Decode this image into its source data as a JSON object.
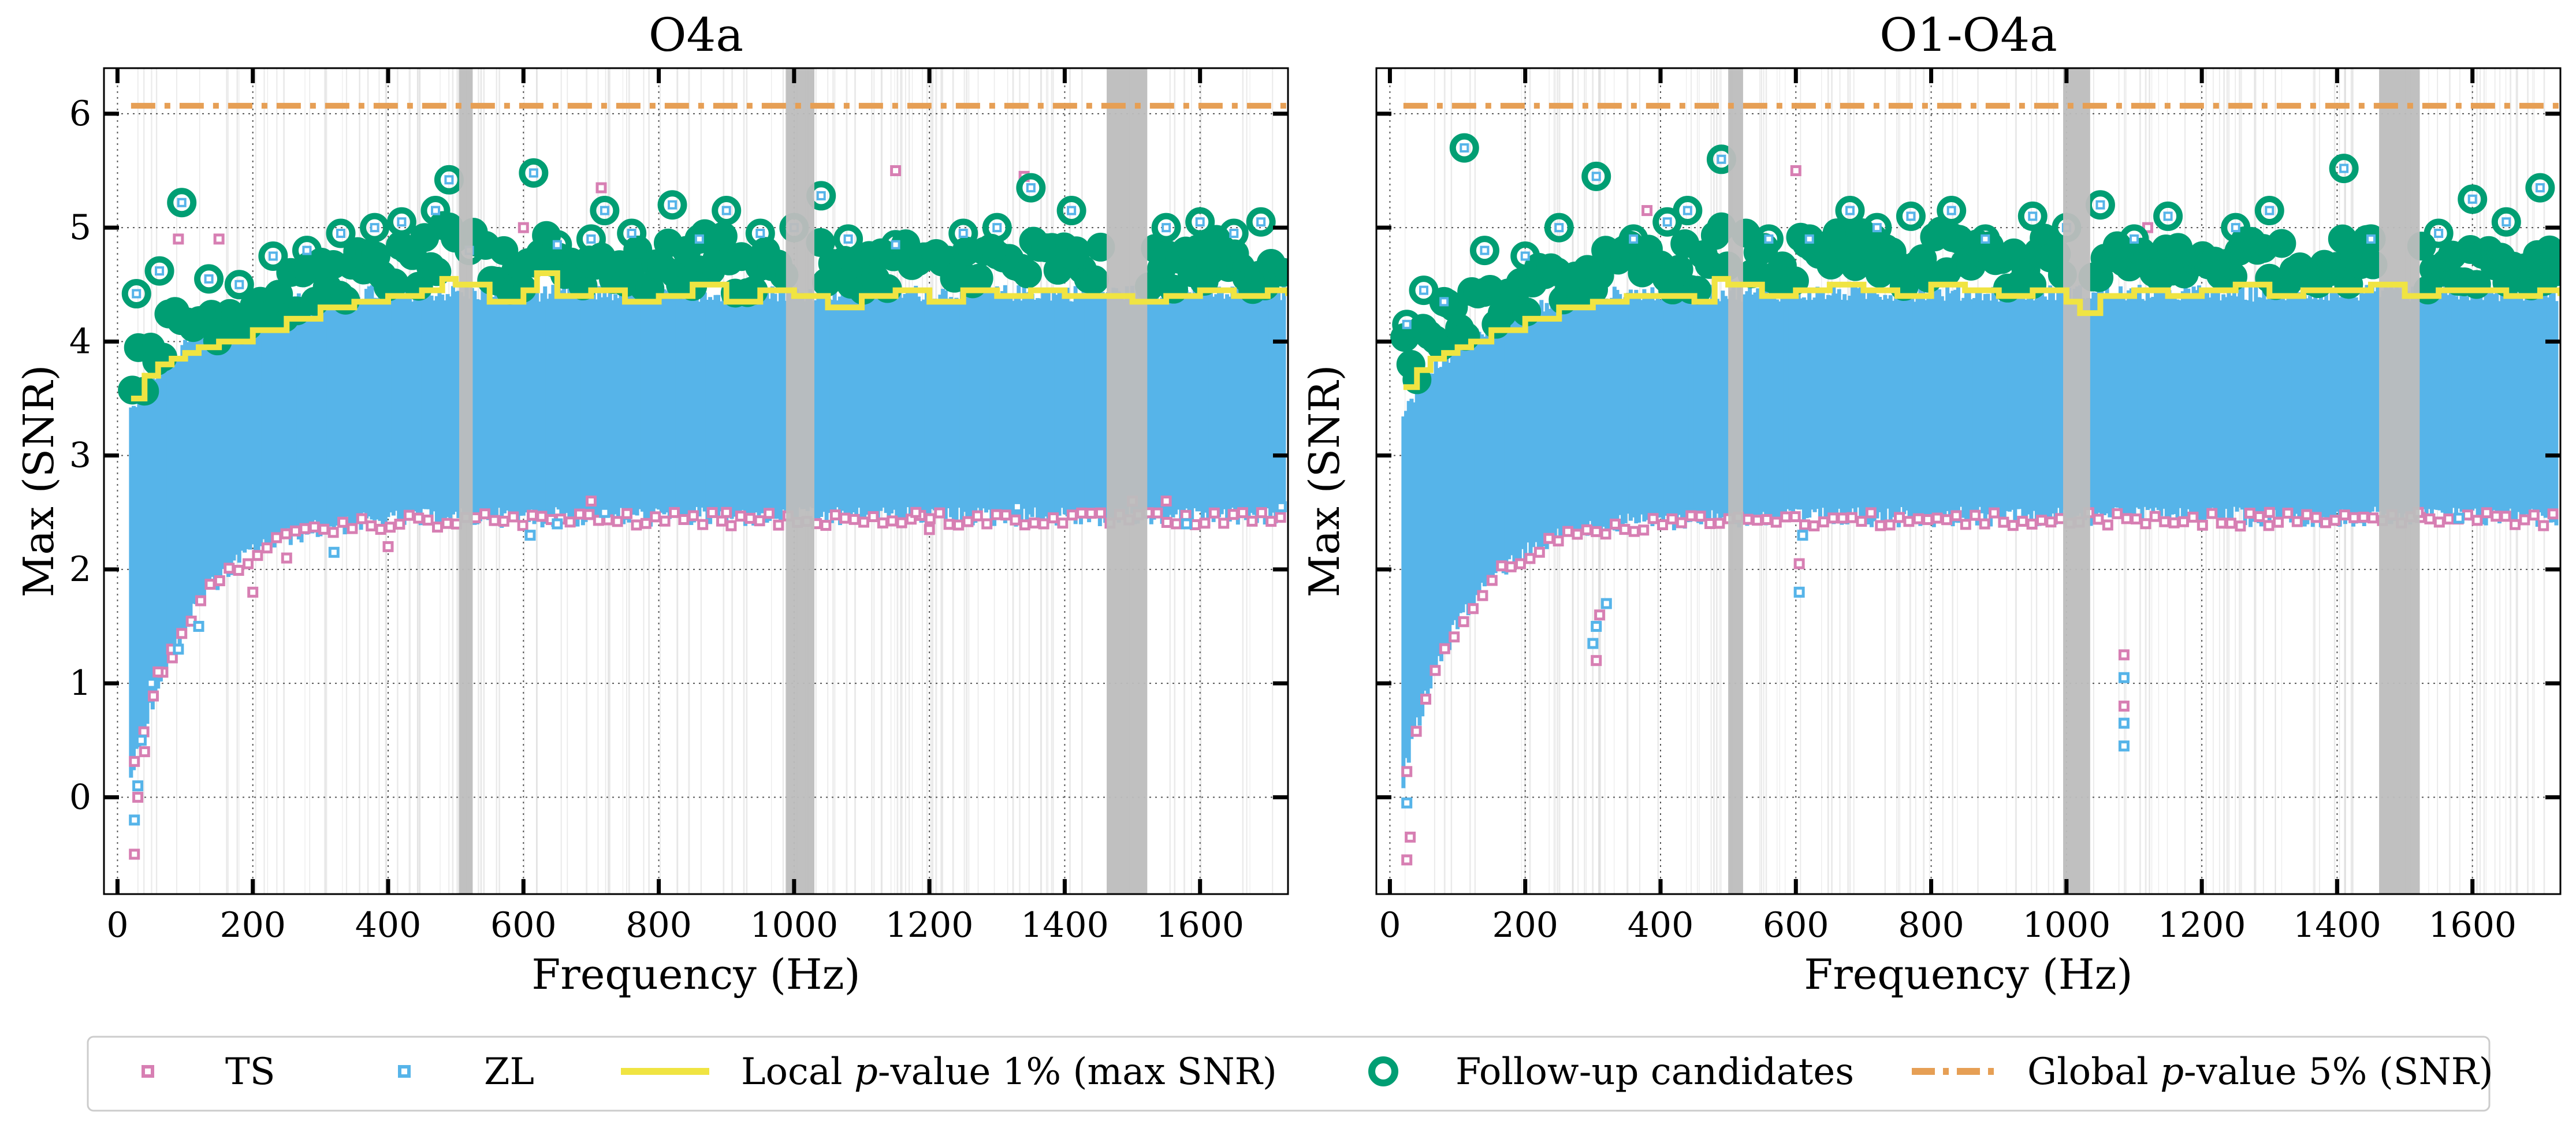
{
  "chart_data": [
    {
      "type": "scatter",
      "title": "O4a",
      "xlabel": "Frequency (Hz)",
      "ylabel": "Max (SNR)",
      "xlim": [
        -20,
        1730
      ],
      "ylim": [
        -0.85,
        6.4
      ],
      "xticks": [
        "0",
        "200",
        "400",
        "600",
        "800",
        "1000",
        "1200",
        "1400",
        "1600"
      ],
      "yticks": [
        "0",
        "1",
        "2",
        "3",
        "4",
        "5",
        "6"
      ],
      "grid": true,
      "vetoed_bands_hz": [
        [
          505,
          525
        ],
        [
          988,
          1030
        ],
        [
          1462,
          1522
        ]
      ],
      "global_pvalue_5pct_snr": 6.07,
      "local_pvalue_1pct_curve": {
        "x": [
          20,
          40,
          60,
          80,
          100,
          120,
          150,
          200,
          250,
          300,
          350,
          400,
          450,
          480,
          500,
          550,
          600,
          620,
          650,
          700,
          750,
          800,
          850,
          900,
          950,
          1000,
          1050,
          1100,
          1150,
          1200,
          1250,
          1300,
          1350,
          1400,
          1450,
          1500,
          1550,
          1600,
          1650,
          1700,
          1730
        ],
        "y": [
          3.5,
          3.7,
          3.8,
          3.85,
          3.9,
          3.95,
          4.0,
          4.1,
          4.2,
          4.3,
          4.35,
          4.4,
          4.45,
          4.55,
          4.5,
          4.35,
          4.45,
          4.6,
          4.4,
          4.45,
          4.35,
          4.4,
          4.5,
          4.35,
          4.45,
          4.4,
          4.3,
          4.4,
          4.45,
          4.35,
          4.45,
          4.4,
          4.45,
          4.4,
          4.4,
          4.35,
          4.4,
          4.45,
          4.4,
          4.45,
          4.4
        ]
      },
      "followup_candidates": {
        "x": [
          28,
          62,
          95,
          135,
          180,
          230,
          280,
          330,
          380,
          420,
          470,
          490,
          520,
          615,
          650,
          700,
          720,
          760,
          820,
          860,
          900,
          950,
          1000,
          1040,
          1080,
          1150,
          1250,
          1300,
          1350,
          1410,
          1550,
          1600,
          1650,
          1690
        ],
        "y": [
          4.42,
          4.62,
          5.22,
          4.55,
          4.5,
          4.75,
          4.8,
          4.95,
          5.0,
          5.05,
          5.15,
          5.42,
          4.8,
          5.48,
          4.85,
          4.9,
          5.15,
          4.95,
          5.2,
          4.9,
          5.15,
          4.95,
          5.0,
          5.28,
          4.9,
          4.85,
          4.95,
          5.0,
          5.35,
          5.15,
          5.0,
          5.05,
          4.95,
          5.05
        ]
      },
      "ts_outliers": {
        "x": [
          25,
          30,
          40,
          60,
          80,
          90,
          150,
          200,
          250,
          380,
          400,
          520,
          600,
          700,
          715,
          900,
          1150,
          1180,
          1200,
          1340,
          1500,
          1550
        ],
        "y": [
          -0.5,
          0.0,
          0.4,
          1.1,
          1.3,
          4.9,
          4.9,
          1.8,
          2.1,
          4.8,
          2.2,
          4.9,
          5.0,
          2.6,
          5.35,
          2.5,
          5.5,
          2.5,
          2.35,
          5.45,
          2.6,
          2.6
        ]
      },
      "zl_outliers": {
        "x": [
          25,
          30,
          35,
          50,
          90,
          120,
          320,
          610,
          650,
          720,
          1330,
          1580,
          1720
        ],
        "y": [
          -0.2,
          0.1,
          0.5,
          1.0,
          1.3,
          1.5,
          2.15,
          2.3,
          2.4,
          2.5,
          2.55,
          2.4,
          2.55
        ]
      }
    },
    {
      "type": "scatter",
      "title": "O1-O4a",
      "xlabel": "Frequency (Hz)",
      "ylabel": "Max (SNR)",
      "xlim": [
        -20,
        1730
      ],
      "ylim": [
        -0.85,
        6.4
      ],
      "xticks": [
        "0",
        "200",
        "400",
        "600",
        "800",
        "1000",
        "1200",
        "1400",
        "1600"
      ],
      "yticks": [
        "0",
        "1",
        "2",
        "3",
        "4",
        "5",
        "6"
      ],
      "grid": true,
      "vetoed_bands_hz": [
        [
          500,
          522
        ],
        [
          995,
          1035
        ],
        [
          1462,
          1522
        ]
      ],
      "global_pvalue_5pct_snr": 6.07,
      "local_pvalue_1pct_curve": {
        "x": [
          20,
          40,
          60,
          80,
          100,
          120,
          150,
          200,
          250,
          300,
          350,
          400,
          450,
          480,
          500,
          550,
          600,
          650,
          700,
          750,
          800,
          850,
          900,
          950,
          1000,
          1020,
          1050,
          1100,
          1150,
          1200,
          1250,
          1300,
          1350,
          1400,
          1450,
          1500,
          1550,
          1600,
          1650,
          1700,
          1730
        ],
        "y": [
          3.6,
          3.75,
          3.85,
          3.9,
          3.95,
          4.0,
          4.1,
          4.2,
          4.3,
          4.35,
          4.4,
          4.4,
          4.35,
          4.55,
          4.5,
          4.4,
          4.45,
          4.5,
          4.45,
          4.4,
          4.5,
          4.45,
          4.4,
          4.45,
          4.35,
          4.25,
          4.4,
          4.45,
          4.4,
          4.45,
          4.5,
          4.4,
          4.45,
          4.45,
          4.5,
          4.4,
          4.45,
          4.45,
          4.4,
          4.45,
          4.4
        ]
      },
      "followup_candidates": {
        "x": [
          25,
          50,
          80,
          110,
          140,
          200,
          250,
          305,
          360,
          410,
          440,
          490,
          560,
          620,
          680,
          720,
          770,
          830,
          880,
          950,
          1000,
          1050,
          1100,
          1150,
          1250,
          1300,
          1410,
          1450,
          1550,
          1600,
          1650,
          1700
        ],
        "y": [
          4.15,
          4.45,
          4.35,
          5.7,
          4.8,
          4.75,
          5.0,
          5.45,
          4.9,
          5.05,
          5.15,
          5.6,
          4.9,
          4.9,
          5.15,
          5.0,
          5.1,
          5.15,
          4.9,
          5.1,
          5.0,
          5.2,
          4.9,
          5.1,
          5.0,
          5.15,
          5.52,
          4.9,
          4.95,
          5.25,
          5.05,
          5.35
        ]
      },
      "ts_outliers": {
        "x": [
          25,
          30,
          305,
          310,
          380,
          600,
          605,
          1085,
          1085,
          1120,
          1300,
          1520
        ],
        "y": [
          -0.55,
          -0.35,
          1.2,
          1.6,
          5.15,
          5.5,
          2.05,
          1.25,
          0.8,
          5.0,
          2.5,
          2.5
        ]
      },
      "zl_outliers": {
        "x": [
          25,
          300,
          305,
          320,
          605,
          610,
          1085,
          1085,
          1085,
          1580
        ],
        "y": [
          -0.05,
          1.35,
          1.5,
          1.7,
          1.8,
          2.3,
          1.05,
          0.65,
          0.45,
          2.45
        ]
      }
    }
  ],
  "legend": {
    "items": [
      {
        "key": "ts",
        "label": "TS",
        "color": "#d77fb3"
      },
      {
        "key": "zl",
        "label": "ZL",
        "color": "#56b4e9"
      },
      {
        "key": "local",
        "label_prefix": "Local ",
        "label_italic": "p",
        "label_suffix": "-value 1% (max SNR)",
        "color": "#f0e442"
      },
      {
        "key": "followup",
        "label": "Follow-up candidates",
        "color": "#009e73"
      },
      {
        "key": "global",
        "label_prefix": "Global ",
        "label_italic": "p",
        "label_suffix": "-value 5% (SNR)",
        "color": "#e69f55"
      }
    ]
  },
  "colors": {
    "ts": "#d77fb3",
    "zl": "#56b4e9",
    "local_threshold": "#f0e442",
    "followup": "#009e73",
    "global_threshold": "#e69f55",
    "veto_band": "#bdbdbd"
  }
}
